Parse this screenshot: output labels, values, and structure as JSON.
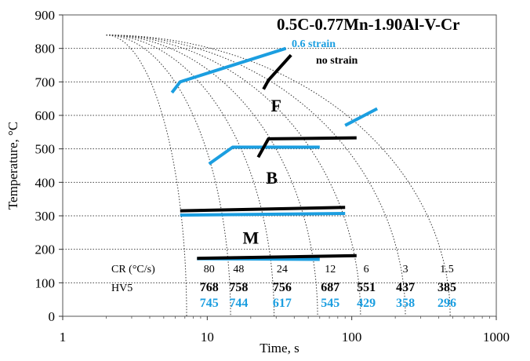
{
  "chart_data": {
    "type": "line",
    "title": "0.5C-0.77Mn-1.90Al-V-Cr",
    "xlabel": "Time, s",
    "ylabel": "Temperature, °C",
    "xscale": "log",
    "xlim": [
      1,
      1000
    ],
    "ylim": [
      0,
      900
    ],
    "x_ticks": [
      1,
      10,
      100,
      1000
    ],
    "x_tick_labels": [
      "1",
      "10",
      "100",
      "1000"
    ],
    "y_ticks": [
      0,
      100,
      200,
      300,
      400,
      500,
      600,
      700,
      800,
      900
    ],
    "y_tick_labels": [
      "0",
      "100",
      "200",
      "300",
      "400",
      "500",
      "600",
      "700",
      "800",
      "900"
    ],
    "grid": "horizontal dotted",
    "legend": [
      {
        "label": "0.6 strain",
        "color": "#1b9ee0"
      },
      {
        "label": "no strain",
        "color": "#000000"
      }
    ],
    "region_labels": [
      {
        "text": "F",
        "x": 30,
        "y": 630
      },
      {
        "text": "B",
        "x": 28,
        "y": 415
      },
      {
        "text": "M",
        "x": 20,
        "y": 235
      }
    ],
    "cooling_curves": [
      {
        "cr": 80,
        "end_time": 7.2
      },
      {
        "cr": 48,
        "end_time": 14.5
      },
      {
        "cr": 24,
        "end_time": 29
      },
      {
        "cr": 12,
        "end_time": 58
      },
      {
        "cr": 6,
        "end_time": 115
      },
      {
        "cr": 3,
        "end_time": 235
      },
      {
        "cr": 1.5,
        "end_time": 480
      }
    ],
    "cooling_start": {
      "time": 2,
      "temperature": 840
    },
    "table": {
      "cr_label": "CR (°C/s)",
      "hv_label": "HV5",
      "cr_values": [
        "80",
        "48",
        "24",
        "12",
        "6",
        "3",
        "1.5"
      ],
      "hv_no_strain": [
        "768",
        "758",
        "756",
        "687",
        "551",
        "437",
        "385"
      ],
      "hv_strain": [
        "745",
        "744",
        "617",
        "545",
        "429",
        "358",
        "296"
      ],
      "positions_time": [
        10.3,
        16.5,
        33,
        71,
        126,
        235,
        455
      ]
    },
    "series": [
      {
        "name": "0.6 strain",
        "color": "#1b9ee0",
        "segments": [
          [
            [
              5.7,
              668
            ],
            [
              6.5,
              700
            ],
            [
              35,
              800
            ]
          ],
          [
            [
              90,
              570
            ],
            [
              150,
              620
            ]
          ],
          [
            [
              10.3,
              455
            ],
            [
              15,
              505
            ],
            [
              60,
              505
            ]
          ],
          [
            [
              6.5,
              302
            ],
            [
              90,
              307
            ]
          ],
          [
            [
              8.5,
              172
            ],
            [
              60,
              170
            ]
          ]
        ]
      },
      {
        "name": "no strain",
        "color": "#000000",
        "segments": [
          [
            [
              24.5,
              678
            ],
            [
              26.5,
              705
            ],
            [
              38,
              780
            ]
          ],
          [
            [
              22.5,
              475
            ],
            [
              26.5,
              530
            ],
            [
              108,
              533
            ]
          ],
          [
            [
              6.5,
              315
            ],
            [
              90,
              325
            ]
          ],
          [
            [
              8.5,
              173
            ],
            [
              108,
              181
            ]
          ]
        ]
      }
    ]
  }
}
